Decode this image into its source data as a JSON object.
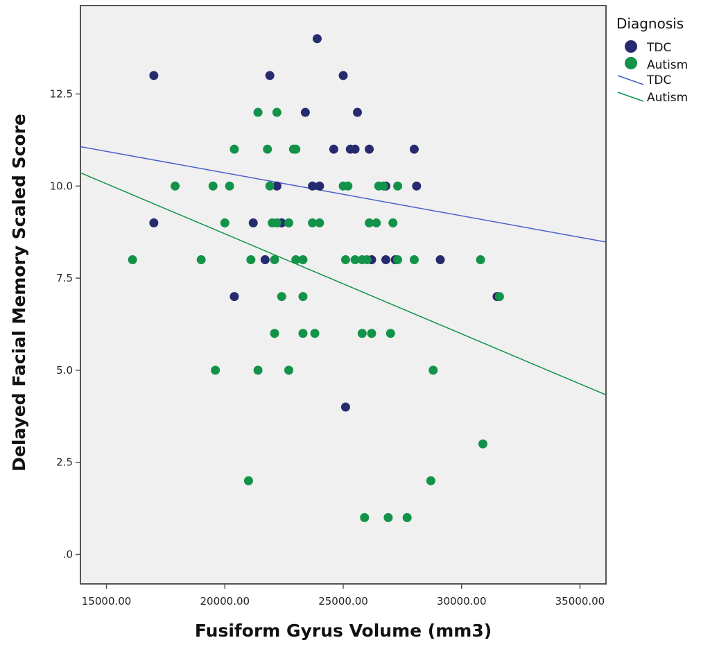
{
  "chart_data": {
    "type": "scatter",
    "title": "",
    "xlabel": "Fusiform Gyrus Volume (mm3)",
    "ylabel": "Delayed Facial Memory Scaled Score",
    "xlim": [
      13900,
      36100
    ],
    "ylim": [
      -0.8,
      14.9
    ],
    "x_ticks": [
      15000,
      20000,
      25000,
      30000,
      35000
    ],
    "x_tick_labels": [
      "15000.00",
      "20000.00",
      "25000.00",
      "30000.00",
      "35000.00"
    ],
    "y_ticks": [
      0,
      2.5,
      5,
      7.5,
      10,
      12.5
    ],
    "y_tick_labels": [
      ".0",
      "2.5",
      "5.0",
      "7.5",
      "10.0",
      "12.5"
    ],
    "grid": false,
    "plot_background": "#f0f0f0",
    "legend": {
      "title": "Diagnosis",
      "position": "right",
      "marker_entries": [
        "TDC",
        "Autism"
      ],
      "line_entries": [
        "TDC",
        "Autism"
      ]
    },
    "series": [
      {
        "name": "TDC",
        "color": "#262a6e",
        "points": [
          [
            17000,
            13
          ],
          [
            17000,
            9
          ],
          [
            21900,
            13
          ],
          [
            23900,
            14
          ],
          [
            25000,
            13
          ],
          [
            23400,
            12
          ],
          [
            25600,
            12
          ],
          [
            24600,
            11
          ],
          [
            25300,
            11
          ],
          [
            25500,
            11
          ],
          [
            26100,
            11
          ],
          [
            28000,
            11
          ],
          [
            22200,
            10
          ],
          [
            23700,
            10
          ],
          [
            24000,
            10
          ],
          [
            26800,
            10
          ],
          [
            28100,
            10
          ],
          [
            21200,
            9
          ],
          [
            22400,
            9
          ],
          [
            21700,
            8
          ],
          [
            26200,
            8
          ],
          [
            26800,
            8
          ],
          [
            27200,
            8
          ],
          [
            29100,
            8
          ],
          [
            20400,
            7
          ],
          [
            31500,
            7
          ],
          [
            25100,
            4
          ]
        ],
        "fit_line": {
          "x": [
            13900,
            36100
          ],
          "y": [
            11.07,
            8.48
          ]
        }
      },
      {
        "name": "Autism",
        "color": "#129349",
        "points": [
          [
            21400,
            12
          ],
          [
            22200,
            12
          ],
          [
            20400,
            11
          ],
          [
            21800,
            11
          ],
          [
            22900,
            11
          ],
          [
            23000,
            11
          ],
          [
            17900,
            10
          ],
          [
            19500,
            10
          ],
          [
            20200,
            10
          ],
          [
            21900,
            10
          ],
          [
            25000,
            10
          ],
          [
            25200,
            10
          ],
          [
            26500,
            10
          ],
          [
            26700,
            10
          ],
          [
            27300,
            10
          ],
          [
            20000,
            9
          ],
          [
            22000,
            9
          ],
          [
            22200,
            9
          ],
          [
            22700,
            9
          ],
          [
            23700,
            9
          ],
          [
            24000,
            9
          ],
          [
            26100,
            9
          ],
          [
            26400,
            9
          ],
          [
            27100,
            9
          ],
          [
            16100,
            8
          ],
          [
            19000,
            8
          ],
          [
            21100,
            8
          ],
          [
            22100,
            8
          ],
          [
            23000,
            8
          ],
          [
            23300,
            8
          ],
          [
            25100,
            8
          ],
          [
            25500,
            8
          ],
          [
            25800,
            8
          ],
          [
            26000,
            8
          ],
          [
            27300,
            8
          ],
          [
            28000,
            8
          ],
          [
            30800,
            8
          ],
          [
            22400,
            7
          ],
          [
            23300,
            7
          ],
          [
            31600,
            7
          ],
          [
            22100,
            6
          ],
          [
            23300,
            6
          ],
          [
            23800,
            6
          ],
          [
            25800,
            6
          ],
          [
            26200,
            6
          ],
          [
            27000,
            6
          ],
          [
            19600,
            5
          ],
          [
            21400,
            5
          ],
          [
            22700,
            5
          ],
          [
            28800,
            5
          ],
          [
            30900,
            3
          ],
          [
            21000,
            2
          ],
          [
            28700,
            2
          ],
          [
            25900,
            1
          ],
          [
            26900,
            1
          ],
          [
            27700,
            1
          ]
        ],
        "fit_line": {
          "x": [
            13900,
            36100
          ],
          "y": [
            10.36,
            4.33
          ]
        }
      }
    ]
  }
}
